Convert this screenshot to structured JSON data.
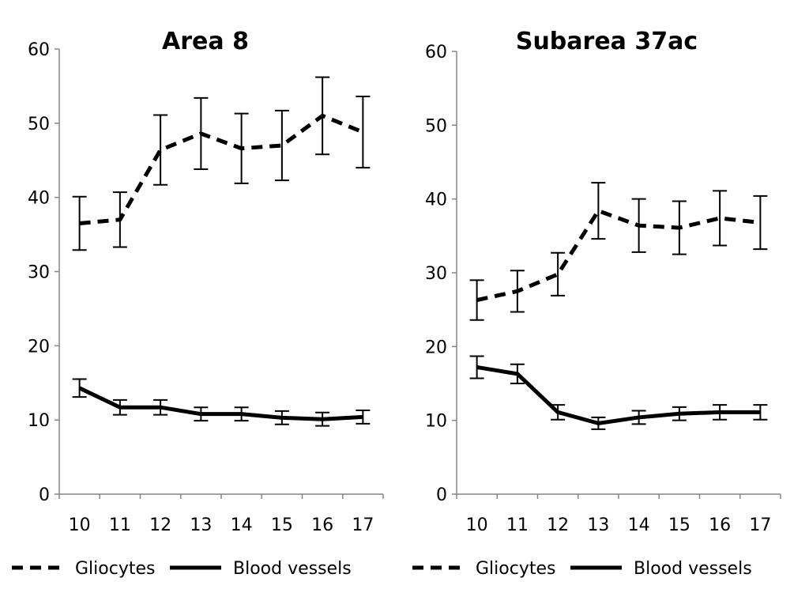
{
  "chart_data": [
    {
      "type": "line",
      "title": "Area 8",
      "categories": [
        "10",
        "11",
        "12",
        "13",
        "14",
        "15",
        "16",
        "17"
      ],
      "ylim": [
        0,
        60
      ],
      "yticks": [
        "0",
        "10",
        "20",
        "30",
        "40",
        "50",
        "60"
      ],
      "grid": false,
      "legend_position": "bottom",
      "series": [
        {
          "name": "Gliocytes",
          "style": "dashed",
          "values": [
            36.5,
            37.0,
            46.4,
            48.6,
            46.6,
            47.0,
            51.0,
            48.8
          ],
          "error": [
            3.6,
            3.7,
            4.7,
            4.8,
            4.7,
            4.7,
            5.2,
            4.8
          ]
        },
        {
          "name": "Blood vessels",
          "style": "solid",
          "values": [
            14.3,
            11.7,
            11.7,
            10.8,
            10.8,
            10.3,
            10.1,
            10.4
          ],
          "error": [
            1.2,
            1.0,
            1.0,
            0.9,
            0.9,
            0.9,
            0.9,
            0.9
          ]
        }
      ]
    },
    {
      "type": "line",
      "title": "Subarea 37ac",
      "categories": [
        "10",
        "11",
        "12",
        "13",
        "14",
        "15",
        "16",
        "17"
      ],
      "ylim": [
        0,
        60
      ],
      "yticks": [
        "0",
        "10",
        "20",
        "30",
        "40",
        "50",
        "60"
      ],
      "grid": false,
      "legend_position": "bottom",
      "series": [
        {
          "name": "Gliocytes",
          "style": "dashed",
          "values": [
            26.3,
            27.5,
            29.8,
            38.4,
            36.4,
            36.1,
            37.4,
            36.8
          ],
          "error": [
            2.7,
            2.8,
            2.9,
            3.8,
            3.6,
            3.6,
            3.7,
            3.6
          ]
        },
        {
          "name": "Blood vessels",
          "style": "solid",
          "values": [
            17.2,
            16.3,
            11.1,
            9.6,
            10.4,
            10.9,
            11.1,
            11.1
          ],
          "error": [
            1.5,
            1.3,
            1.0,
            0.8,
            0.9,
            0.9,
            1.0,
            1.0
          ]
        }
      ]
    }
  ],
  "colors": {
    "line": "#000000",
    "axis": "#868686"
  }
}
